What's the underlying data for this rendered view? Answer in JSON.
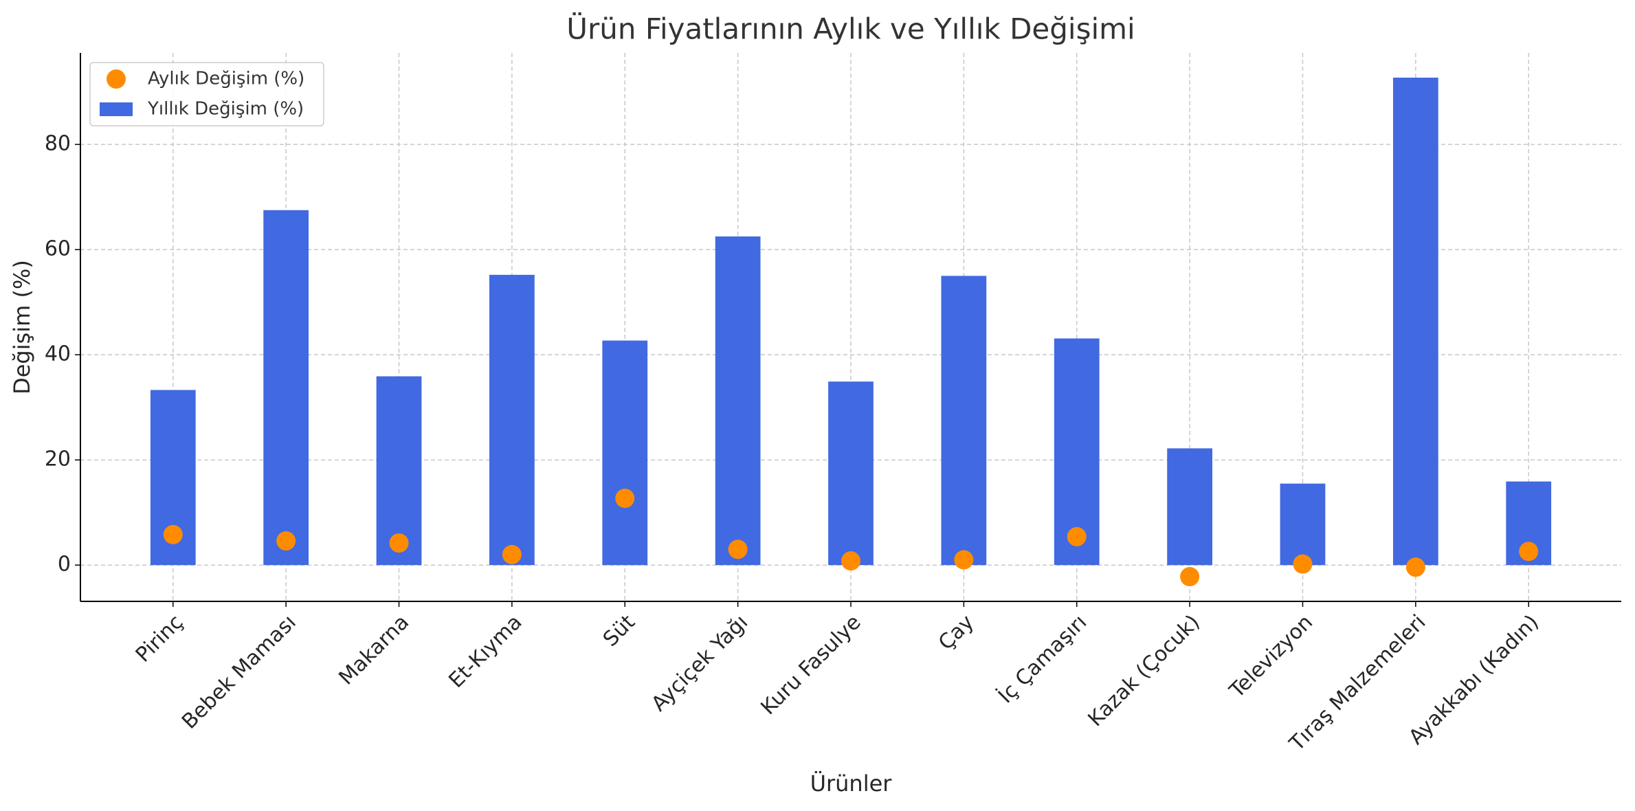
{
  "chart_data": {
    "type": "bar",
    "title": "Ürün Fiyatlarının Aylık ve Yıllık Değişimi",
    "xlabel": "Ürünler",
    "ylabel": "Değişim (%)",
    "categories": [
      "Pirinç",
      "Bebek Maması",
      "Makarna",
      "Et-Kıyma",
      "Süt",
      "Ayçiçek Yağı",
      "Kuru Fasulye",
      "Çay",
      "İç Çamaşırı",
      "Kazak (Çocuk)",
      "Televizyon",
      "Tıraş Malzemeleri",
      "Ayakkabı (Kadın)"
    ],
    "series": [
      {
        "name": "Aylık Değişim (%)",
        "type": "scatter",
        "color": "#ff8c00",
        "values": [
          5.8,
          4.6,
          4.2,
          2.0,
          12.7,
          3.0,
          0.8,
          1.0,
          5.4,
          -2.2,
          0.2,
          -0.4,
          2.6
        ]
      },
      {
        "name": "Yıllık Değişim (%)",
        "type": "bar",
        "color": "#4169e1",
        "values": [
          33.3,
          67.5,
          35.9,
          55.2,
          42.7,
          62.5,
          34.9,
          55.0,
          43.1,
          22.2,
          15.5,
          92.7,
          15.9
        ]
      }
    ],
    "ylim": [
      -6.9,
      97.4
    ],
    "yticks": [
      0,
      20,
      40,
      60,
      80
    ],
    "grid": true,
    "legend": "upper left"
  }
}
